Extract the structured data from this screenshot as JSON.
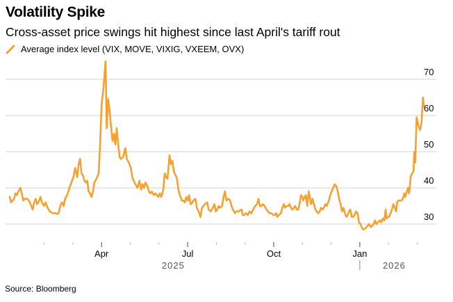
{
  "header": {
    "title": "Volatility Spike",
    "subtitle": "Cross-asset price swings hit highest since last April's tariff rout"
  },
  "footer": {
    "source": "Source: Bloomberg"
  },
  "chart_data": {
    "type": "line",
    "title": "Volatility Spike",
    "subtitle": "Cross-asset price swings hit highest since last April's tariff rout",
    "xlabel": "",
    "ylabel": "",
    "legend": {
      "position": "top-left",
      "entries": [
        "Average index level (VIX, MOVE, VIXIG, VXEEM, OVX)"
      ]
    },
    "colors": {
      "line": "#f7a030",
      "grid": "#e0e0e0"
    },
    "ylim": [
      27,
      73
    ],
    "yticks": [
      30,
      40,
      50,
      60,
      70
    ],
    "y_axis_side": "right",
    "grid": true,
    "xlim": [
      -0.22,
      13.95
    ],
    "x_unit": "months since 2025-01-01",
    "xticks": [
      {
        "x": 1,
        "label": ""
      },
      {
        "x": 2,
        "label": ""
      },
      {
        "x": 3,
        "label": "Apr",
        "major": true
      },
      {
        "x": 4,
        "label": ""
      },
      {
        "x": 5,
        "label": ""
      },
      {
        "x": 6,
        "label": "Jul",
        "major": true
      },
      {
        "x": 7,
        "label": ""
      },
      {
        "x": 8,
        "label": ""
      },
      {
        "x": 9,
        "label": "Oct",
        "major": true
      },
      {
        "x": 10,
        "label": ""
      },
      {
        "x": 11,
        "label": ""
      },
      {
        "x": 12,
        "label": "Jan",
        "major": true
      },
      {
        "x": 13,
        "label": ""
      },
      {
        "x": 14,
        "label": ""
      }
    ],
    "year_labels": [
      {
        "x": 5.5,
        "label": "2025"
      },
      {
        "x": 13.2,
        "label": "2026"
      }
    ],
    "year_divider_x": 12,
    "series": [
      {
        "name": "Average index level (VIX, MOVE, VIXIG, VXEEM, OVX)",
        "points": [
          [
            -0.2,
            37.5
          ],
          [
            -0.15,
            36.0
          ],
          [
            -0.1,
            36.5
          ],
          [
            -0.05,
            37.0
          ],
          [
            0.0,
            38.5
          ],
          [
            0.05,
            38.0
          ],
          [
            0.1,
            39.0
          ],
          [
            0.17,
            40.0
          ],
          [
            0.22,
            38.5
          ],
          [
            0.27,
            36.5
          ],
          [
            0.32,
            37.0
          ],
          [
            0.4,
            37.0
          ],
          [
            0.47,
            36.5
          ],
          [
            0.55,
            35.0
          ],
          [
            0.6,
            34.0
          ],
          [
            0.65,
            36.0
          ],
          [
            0.7,
            37.0
          ],
          [
            0.75,
            35.5
          ],
          [
            0.8,
            36.0
          ],
          [
            0.87,
            37.5
          ],
          [
            0.92,
            36.0
          ],
          [
            1.0,
            35.0
          ],
          [
            1.05,
            36.0
          ],
          [
            1.12,
            34.5
          ],
          [
            1.2,
            33.5
          ],
          [
            1.3,
            33.0
          ],
          [
            1.4,
            33.0
          ],
          [
            1.45,
            32.8
          ],
          [
            1.5,
            33.0
          ],
          [
            1.58,
            35.5
          ],
          [
            1.63,
            36.0
          ],
          [
            1.68,
            35.0
          ],
          [
            1.73,
            37.0
          ],
          [
            1.8,
            38.0
          ],
          [
            1.88,
            40.0
          ],
          [
            1.95,
            41.5
          ],
          [
            2.02,
            43.0
          ],
          [
            2.08,
            45.5
          ],
          [
            2.15,
            43.0
          ],
          [
            2.2,
            46.5
          ],
          [
            2.25,
            48.0
          ],
          [
            2.3,
            44.0
          ],
          [
            2.35,
            43.5
          ],
          [
            2.4,
            42.0
          ],
          [
            2.45,
            41.5
          ],
          [
            2.5,
            42.0
          ],
          [
            2.55,
            39.0
          ],
          [
            2.6,
            38.5
          ],
          [
            2.65,
            37.5
          ],
          [
            2.7,
            39.0
          ],
          [
            2.75,
            41.5
          ],
          [
            2.82,
            42.5
          ],
          [
            2.9,
            44.0
          ],
          [
            2.95,
            52.0
          ],
          [
            3.0,
            63.0
          ],
          [
            3.07,
            68.0
          ],
          [
            3.14,
            75.0
          ],
          [
            3.18,
            56.5
          ],
          [
            3.23,
            64.5
          ],
          [
            3.28,
            61.5
          ],
          [
            3.33,
            57.0
          ],
          [
            3.38,
            53.0
          ],
          [
            3.43,
            55.0
          ],
          [
            3.48,
            52.0
          ],
          [
            3.53,
            56.5
          ],
          [
            3.58,
            52.0
          ],
          [
            3.63,
            48.5
          ],
          [
            3.68,
            48.0
          ],
          [
            3.75,
            48.5
          ],
          [
            3.83,
            51.0
          ],
          [
            3.88,
            48.0
          ],
          [
            3.95,
            47.0
          ],
          [
            4.02,
            45.5
          ],
          [
            4.07,
            43.0
          ],
          [
            4.12,
            42.0
          ],
          [
            4.18,
            41.0
          ],
          [
            4.25,
            40.0
          ],
          [
            4.32,
            42.0
          ],
          [
            4.38,
            39.5
          ],
          [
            4.43,
            41.0
          ],
          [
            4.48,
            40.0
          ],
          [
            4.53,
            41.5
          ],
          [
            4.6,
            40.5
          ],
          [
            4.65,
            39.0
          ],
          [
            4.7,
            38.5
          ],
          [
            4.75,
            39.0
          ],
          [
            4.82,
            38.0
          ],
          [
            4.88,
            38.5
          ],
          [
            4.93,
            38.0
          ],
          [
            4.98,
            37.5
          ],
          [
            5.03,
            38.5
          ],
          [
            5.08,
            37.5
          ],
          [
            5.15,
            39.5
          ],
          [
            5.2,
            44.0
          ],
          [
            5.25,
            43.0
          ],
          [
            5.3,
            42.5
          ],
          [
            5.37,
            49.0
          ],
          [
            5.42,
            46.5
          ],
          [
            5.47,
            47.5
          ],
          [
            5.52,
            44.5
          ],
          [
            5.58,
            43.5
          ],
          [
            5.63,
            42.5
          ],
          [
            5.68,
            39.5
          ],
          [
            5.73,
            38.0
          ],
          [
            5.8,
            36.5
          ],
          [
            5.85,
            36.5
          ],
          [
            5.9,
            36.0
          ],
          [
            5.95,
            37.5
          ],
          [
            6.0,
            36.5
          ],
          [
            6.05,
            38.0
          ],
          [
            6.1,
            35.5
          ],
          [
            6.15,
            35.8
          ],
          [
            6.2,
            36.5
          ],
          [
            6.27,
            37.0
          ],
          [
            6.32,
            34.5
          ],
          [
            6.38,
            33.5
          ],
          [
            6.45,
            32.0
          ],
          [
            6.5,
            34.5
          ],
          [
            6.55,
            35.0
          ],
          [
            6.6,
            35.5
          ],
          [
            6.68,
            36.0
          ],
          [
            6.73,
            34.0
          ],
          [
            6.8,
            33.5
          ],
          [
            6.88,
            34.5
          ],
          [
            6.93,
            35.5
          ],
          [
            6.98,
            33.5
          ],
          [
            7.03,
            34.0
          ],
          [
            7.08,
            35.0
          ],
          [
            7.13,
            34.5
          ],
          [
            7.2,
            35.0
          ],
          [
            7.25,
            37.5
          ],
          [
            7.3,
            39.0
          ],
          [
            7.35,
            36.5
          ],
          [
            7.42,
            37.0
          ],
          [
            7.48,
            36.5
          ],
          [
            7.53,
            35.0
          ],
          [
            7.58,
            34.0
          ],
          [
            7.65,
            33.0
          ],
          [
            7.7,
            33.5
          ],
          [
            7.77,
            33.5
          ],
          [
            7.83,
            33.8
          ],
          [
            7.88,
            34.0
          ],
          [
            7.92,
            32.5
          ],
          [
            7.97,
            32.5
          ],
          [
            8.03,
            33.0
          ],
          [
            8.1,
            32.5
          ],
          [
            8.15,
            33.5
          ],
          [
            8.22,
            33.0
          ],
          [
            8.28,
            34.0
          ],
          [
            8.35,
            35.0
          ],
          [
            8.42,
            35.5
          ],
          [
            8.47,
            37.0
          ],
          [
            8.52,
            35.0
          ],
          [
            8.57,
            35.0
          ],
          [
            8.62,
            35.5
          ],
          [
            8.68,
            35.0
          ],
          [
            8.75,
            34.0
          ],
          [
            8.8,
            33.5
          ],
          [
            8.85,
            33.0
          ],
          [
            8.92,
            33.0
          ],
          [
            8.98,
            32.5
          ],
          [
            9.03,
            32.5
          ],
          [
            9.08,
            33.0
          ],
          [
            9.12,
            32.0
          ],
          [
            9.18,
            32.5
          ],
          [
            9.25,
            33.0
          ],
          [
            9.3,
            34.5
          ],
          [
            9.35,
            35.5
          ],
          [
            9.4,
            34.5
          ],
          [
            9.45,
            35.0
          ],
          [
            9.5,
            35.0
          ],
          [
            9.55,
            35.5
          ],
          [
            9.6,
            34.5
          ],
          [
            9.65,
            34.0
          ],
          [
            9.7,
            34.5
          ],
          [
            9.75,
            35.0
          ],
          [
            9.8,
            34.0
          ],
          [
            9.85,
            34.0
          ],
          [
            9.9,
            35.5
          ],
          [
            9.95,
            38.0
          ],
          [
            10.0,
            37.5
          ],
          [
            10.03,
            36.5
          ],
          [
            10.08,
            37.5
          ],
          [
            10.12,
            38.0
          ],
          [
            10.17,
            35.0
          ],
          [
            10.22,
            39.0
          ],
          [
            10.27,
            37.0
          ],
          [
            10.3,
            35.5
          ],
          [
            10.35,
            37.0
          ],
          [
            10.4,
            35.5
          ],
          [
            10.45,
            34.0
          ],
          [
            10.5,
            33.5
          ],
          [
            10.55,
            33.0
          ],
          [
            10.6,
            33.5
          ],
          [
            10.65,
            34.5
          ],
          [
            10.7,
            34.0
          ],
          [
            10.75,
            34.5
          ],
          [
            10.8,
            35.5
          ],
          [
            10.85,
            35.0
          ],
          [
            10.92,
            36.5
          ],
          [
            10.97,
            38.0
          ],
          [
            11.02,
            39.0
          ],
          [
            11.07,
            40.0
          ],
          [
            11.12,
            41.0
          ],
          [
            11.18,
            40.5
          ],
          [
            11.23,
            39.0
          ],
          [
            11.28,
            37.0
          ],
          [
            11.33,
            35.5
          ],
          [
            11.38,
            33.5
          ],
          [
            11.43,
            34.5
          ],
          [
            11.48,
            33.0
          ],
          [
            11.53,
            32.0
          ],
          [
            11.58,
            32.5
          ],
          [
            11.62,
            33.5
          ],
          [
            11.67,
            34.0
          ],
          [
            11.72,
            32.0
          ],
          [
            11.77,
            32.0
          ],
          [
            11.82,
            32.5
          ],
          [
            11.87,
            33.5
          ],
          [
            11.92,
            33.0
          ],
          [
            11.97,
            30.5
          ],
          [
            12.02,
            30.0
          ],
          [
            12.07,
            29.0
          ],
          [
            12.12,
            28.5
          ],
          [
            12.17,
            28.7
          ],
          [
            12.22,
            29.0
          ],
          [
            12.27,
            29.5
          ],
          [
            12.32,
            30.0
          ],
          [
            12.38,
            29.2
          ],
          [
            12.43,
            29.5
          ],
          [
            12.48,
            30.0
          ],
          [
            12.53,
            31.0
          ],
          [
            12.58,
            30.0
          ],
          [
            12.63,
            30.5
          ],
          [
            12.7,
            31.0
          ],
          [
            12.75,
            30.5
          ],
          [
            12.8,
            31.5
          ],
          [
            12.85,
            31.0
          ],
          [
            12.9,
            34.0
          ],
          [
            12.93,
            31.5
          ],
          [
            12.97,
            32.0
          ],
          [
            13.02,
            32.0
          ],
          [
            13.07,
            33.0
          ],
          [
            13.12,
            34.0
          ],
          [
            13.17,
            35.5
          ],
          [
            13.22,
            34.5
          ],
          [
            13.27,
            33.5
          ],
          [
            13.3,
            36.0
          ],
          [
            13.35,
            36.5
          ],
          [
            13.4,
            36.5
          ],
          [
            13.45,
            36.5
          ],
          [
            13.5,
            37.0
          ],
          [
            13.55,
            38.5
          ],
          [
            13.58,
            37.5
          ],
          [
            13.62,
            38.5
          ],
          [
            13.68,
            40.0
          ],
          [
            13.72,
            38.5
          ],
          [
            13.77,
            43.0
          ],
          [
            13.82,
            44.0
          ],
          [
            13.87,
            44.5
          ],
          [
            13.9,
            50.0
          ],
          [
            13.93,
            47.0
          ],
          [
            13.98,
            59.5
          ],
          [
            14.05,
            57.0
          ],
          [
            14.1,
            56.0
          ],
          [
            14.15,
            58.0
          ],
          [
            14.2,
            65.0
          ],
          [
            14.23,
            62.5
          ]
        ]
      }
    ]
  }
}
